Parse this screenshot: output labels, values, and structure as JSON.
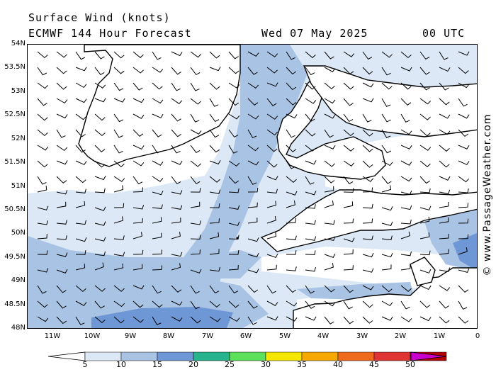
{
  "header": {
    "title": "Surface Wind (knots)",
    "model": "ECMWF 144 Hour Forecast",
    "date": "Wed 07 May 2025",
    "time": "00 UTC"
  },
  "credit": "© www.PassageWeather.com",
  "map": {
    "lat_labels": [
      "54N",
      "53.5N",
      "53N",
      "52.5N",
      "52N",
      "51.5N",
      "51N",
      "50.5N",
      "50N",
      "49.5N",
      "49N",
      "48.5N",
      "48N"
    ],
    "lon_labels": [
      "11W",
      "10W",
      "9W",
      "8W",
      "7W",
      "6W",
      "5W",
      "4W",
      "3W",
      "2W",
      "1W",
      "0"
    ],
    "bounds": {
      "west": -12,
      "east": 0,
      "south": 48,
      "north": 54
    },
    "colors": {
      "c5": "#dce8f6",
      "c10": "#a9c3e4",
      "c15": "#6e97d6",
      "coast": "#000000",
      "land": "#ffffff"
    }
  },
  "legend": {
    "labels": [
      "5",
      "10",
      "15",
      "20",
      "25",
      "30",
      "35",
      "40",
      "45",
      "50"
    ],
    "colors": [
      "#dce8f6",
      "#a9c3e4",
      "#6e97d6",
      "#27b38c",
      "#5ce05c",
      "#f5e600",
      "#f5a800",
      "#f06a1e",
      "#e03333",
      "#b30000"
    ],
    "low_arrow_color": "#ffffff",
    "high_arrow_color": "#cc00cc"
  }
}
